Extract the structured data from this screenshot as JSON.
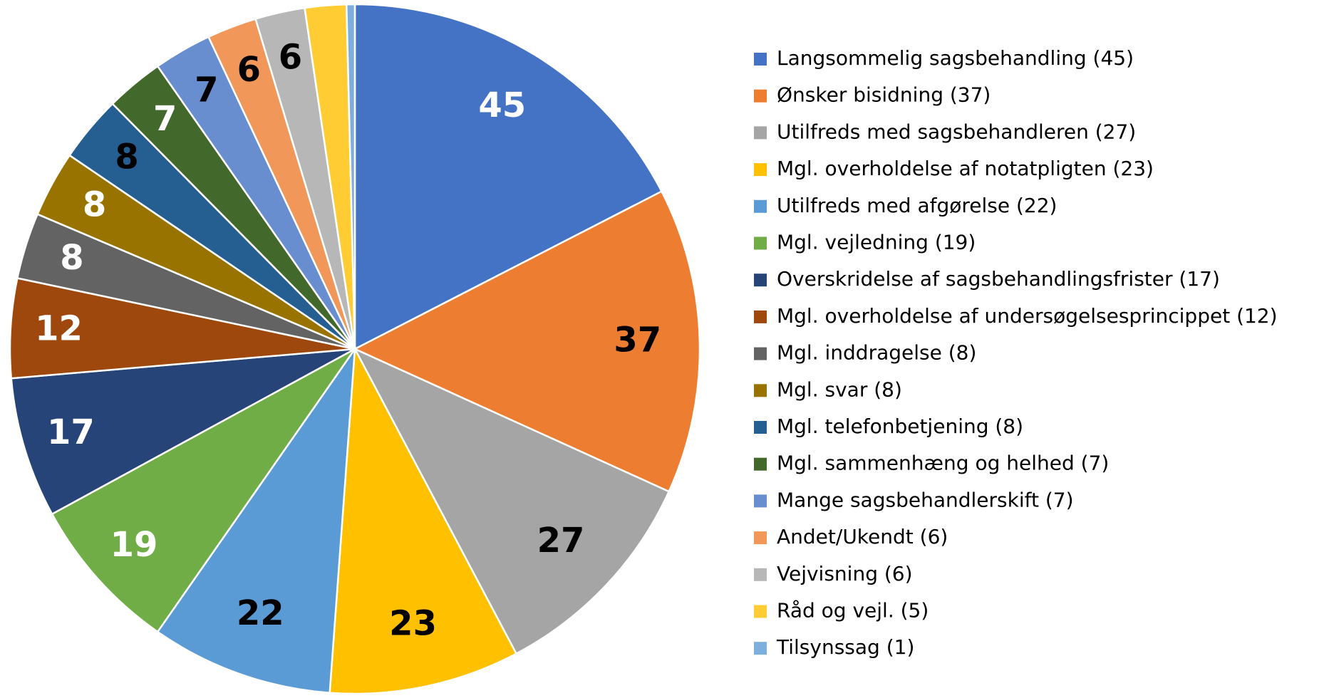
{
  "chart_data": {
    "type": "pie",
    "categories": [
      "Langsommelig sagsbehandling (45)",
      "Ønsker bisidning (37)",
      "Utilfreds med sagsbehandleren (27)",
      "Mgl. overholdelse af notatpligten (23)",
      "Utilfreds med afgørelse (22)",
      "Mgl. vejledning (19)",
      "Overskridelse af sagsbehandlingsfrister (17)",
      "Mgl. overholdelse af undersøgelsesprincippet (12)",
      "Mgl. inddragelse (8)",
      "Mgl. svar (8)",
      "Mgl. telefonbetjening (8)",
      "Mgl. sammenhæng og helhed (7)",
      "Mange sagsbehandlerskift (7)",
      "Andet/Ukendt (6)",
      "Vejvisning (6)",
      "Råd og vejl. (5)",
      "Tilsynssag (1)"
    ],
    "values": [
      45,
      37,
      27,
      23,
      22,
      19,
      17,
      12,
      8,
      8,
      8,
      7,
      7,
      6,
      6,
      5,
      1
    ],
    "colors": [
      "#4472c4",
      "#ed7d31",
      "#a5a5a5",
      "#ffc000",
      "#5b9bd5",
      "#70ad47",
      "#264478",
      "#9e480e",
      "#636363",
      "#997300",
      "#255e91",
      "#43682b",
      "#698ed0",
      "#f1975a",
      "#b7b7b7",
      "#ffcd33",
      "#7cafdd"
    ],
    "show_value": [
      true,
      true,
      true,
      true,
      true,
      true,
      true,
      true,
      true,
      true,
      true,
      true,
      true,
      true,
      true,
      false,
      false
    ],
    "label_colors": [
      "#ffffff",
      "#000000",
      "#000000",
      "#000000",
      "#000000",
      "#ffffff",
      "#ffffff",
      "#ffffff",
      "#ffffff",
      "#ffffff",
      "#000000",
      "#ffffff",
      "#000000",
      "#000000",
      "#000000",
      "#000000",
      "#000000"
    ],
    "legend": "right"
  }
}
